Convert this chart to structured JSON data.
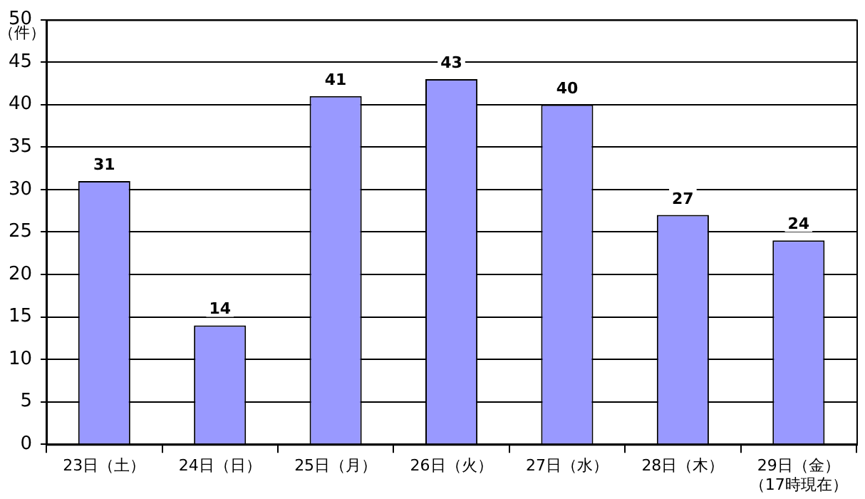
{
  "chart_data": {
    "type": "bar",
    "ylabel": "（件）",
    "categories": [
      "23日（土）",
      "24日（日）",
      "25日（月）",
      "26日（火）",
      "27日（水）",
      "28日（木）",
      "29日（金）（17時現在）"
    ],
    "values": [
      31,
      14,
      41,
      43,
      40,
      27,
      24
    ],
    "color": "#9999ff",
    "ylim": [
      0,
      50
    ],
    "yticks": [
      0,
      5,
      10,
      15,
      20,
      25,
      30,
      35,
      40,
      45,
      50
    ],
    "grid": "y",
    "data_labels": true
  }
}
